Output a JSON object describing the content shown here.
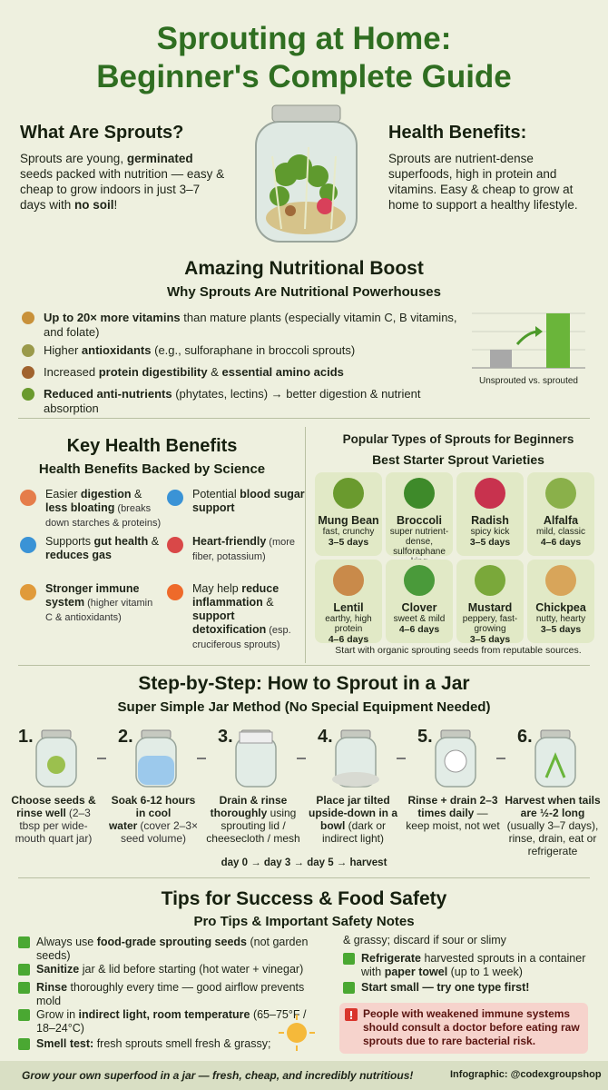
{
  "header": {
    "title_lines": [
      "Sprouting at Home:",
      "Beginner's Complete Guide"
    ]
  },
  "intro": {
    "what": {
      "title": "What Are Sprouts?",
      "text": [
        "Sprouts are young, ",
        {
          "bold": "germinated"
        },
        " seeds packed with nutrition — easy & cheap to grow indoors in just 3–7 days with ",
        {
          "bold": "no soil"
        },
        "!"
      ]
    },
    "health": {
      "title": "Health Benefits:",
      "text": [
        "Sprouts are nutrient-dense superfoods, high in protein and vitamins. Easy & cheap to grow at home to support a healthy lifestyle."
      ]
    }
  },
  "nutrition": {
    "title": "Amazing Nutritional Boost",
    "subtitle": "Why Sprouts Are Nutritional Powerhouses",
    "items": [
      [
        {
          "bold": "Up to 20× more vitamins"
        },
        " than mature plants (especially vitamin C, B vitamins, and folate)"
      ],
      [
        "Higher ",
        {
          "bold": "antioxidants"
        },
        " (e.g., sulforaphane in broccoli sprouts)"
      ],
      [
        "Increased ",
        {
          "bold": "protein digestibility"
        },
        " & ",
        {
          "bold": "essential amino acids"
        }
      ],
      [
        {
          "bold": "Reduced anti-nutrients"
        },
        " (phytates, lectins) → better digestion & nutrient absorption"
      ]
    ],
    "chart_caption": "Unsprouted vs. sprouted"
  },
  "benefits": {
    "title": "Key Health Benefits",
    "subtitle": "Health Benefits Backed by Science",
    "items": [
      [
        "Easier ",
        {
          "bold": "digestion"
        },
        " & ",
        {
          "bold": "less bloating"
        },
        {
          "note": "(breaks down starches & proteins)"
        }
      ],
      [
        "Potential ",
        {
          "bold": "blood sugar support"
        }
      ],
      [
        "Supports ",
        {
          "bold": "gut health"
        },
        " & ",
        {
          "bold": "reduces gas"
        }
      ],
      [
        {
          "bold": "Heart-friendly"
        },
        {
          "note": "(more fiber, potassium)"
        }
      ],
      [
        {
          "bold": "Stronger immune system"
        },
        {
          "note": "(higher vitamin C & antioxidants)"
        }
      ],
      [
        "May help ",
        {
          "bold": "reduce inflammation"
        },
        " & ",
        {
          "bold": "support detoxification"
        },
        {
          "note": "(esp. cruciferous sprouts)"
        }
      ]
    ]
  },
  "varieties": {
    "title": "Popular Types of Sprouts for Beginners",
    "subtitle": "Best Starter Sprout Varieties",
    "items": [
      {
        "name": "Mung Bean",
        "desc": "fast, crunchy",
        "days": "3–5 days"
      },
      {
        "name": "Broccoli",
        "desc": "super nutrient-dense, sulforaphane king",
        "days": "3–5 days"
      },
      {
        "name": "Radish",
        "desc": "spicy kick",
        "days": "3–5 days"
      },
      {
        "name": "Alfalfa",
        "desc": "mild, classic",
        "days": "4–6 days"
      },
      {
        "name": "Lentil",
        "desc": "earthy, high protein",
        "days": "4–6 days"
      },
      {
        "name": "Clover",
        "desc": "sweet & mild",
        "days": "4–6 days"
      },
      {
        "name": "Mustard",
        "desc": "peppery, fast-growing",
        "days": "3–5 days"
      },
      {
        "name": "Chickpea",
        "desc": "nutty, hearty",
        "days": "3–5 days"
      }
    ],
    "footnote": "Start with organic sprouting seeds from reputable sources."
  },
  "steps": {
    "title": "Step-by-Step: How to Sprout in a Jar",
    "subtitle": "Super Simple Jar Method (No Special Equipment Needed)",
    "items": [
      {
        "number": "1.",
        "text": [
          {
            "bold": "Choose seeds & rinse well"
          },
          {
            "note": "(2–3 tbsp per wide-mouth quart jar)"
          }
        ]
      },
      {
        "number": "2.",
        "text": [
          {
            "bold": "Soak 6-12 hours in cool water"
          },
          {
            "note": "(cover 2–3× seed volume)"
          }
        ]
      },
      {
        "number": "3.",
        "text": [
          {
            "bold": "Drain & rinse thoroughly"
          },
          " using sprouting lid / cheesecloth / mesh"
        ]
      },
      {
        "number": "4.",
        "text": [
          {
            "bold": "Place jar tilted upside-down in a bowl"
          },
          " (dark or indirect light)"
        ]
      },
      {
        "number": "5.",
        "text": [
          {
            "bold": "Rinse + drain 2–3 times daily"
          },
          " — keep moist, not wet"
        ]
      },
      {
        "number": "6.",
        "text": [
          {
            "bold": "Harvest when tails are ½-2 long"
          },
          " (usually 3–7 days), rinse, drain, eat or refrigerate"
        ]
      }
    ],
    "timeline": "day 0 → day 3 → day 5 → harvest"
  },
  "tips": {
    "title": "Tips for Success & Food Safety",
    "subtitle": "Pro Tips & Important Safety Notes",
    "left": [
      [
        "Always use ",
        {
          "bold": "food-grade sprouting seeds"
        },
        " (not garden seeds)"
      ],
      [
        {
          "bold": "Sanitize"
        },
        " jar & lid before starting (hot water + vinegar)"
      ],
      [
        {
          "bold": "Rinse"
        },
        " thoroughly every time — good airflow prevents mold"
      ],
      [
        "Grow in ",
        {
          "bold": "indirect light, room temperature"
        },
        " (65–75°F / 18–24°C)"
      ],
      [
        {
          "bold": "Smell test:"
        },
        " fresh sprouts smell fresh & grassy;"
      ]
    ],
    "continuation": "& grassy; discard if sour or slimy",
    "right": [
      [
        {
          "bold": "Refrigerate"
        },
        " harvested sprouts in a container with ",
        {
          "bold": "paper towel"
        },
        " (up to 1 week)"
      ],
      [
        {
          "bold": "Start small — try one type first!"
        }
      ]
    ],
    "warning": "People with weakened immune systems should consult a doctor before eating raw sprouts due to rare bacterial risk."
  },
  "footer": {
    "text": "Grow your own superfood in a jar — fresh, cheap, and incredibly nutritious!",
    "credit": "Infographic: @codexgroupshop"
  }
}
